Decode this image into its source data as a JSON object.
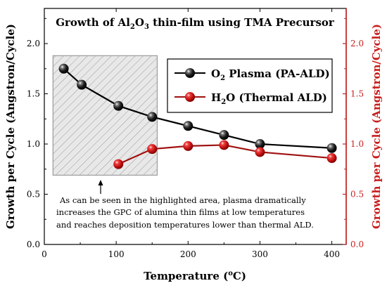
{
  "chart_data": {
    "type": "line",
    "title": {
      "pre": "Growth of Al",
      "sub1": "2",
      "mid": "O",
      "sub2": "3",
      "post": " thin-film using TMA Precursor"
    },
    "xlabel": {
      "pre": "Temperature (",
      "sup": "o",
      "post": "C)"
    },
    "ylabel_left": "Growth per Cycle (Angstron/Cycle)",
    "ylabel_right": "Growth per Cycle (Angstron/Cycle)",
    "xlim": [
      0,
      420
    ],
    "ylim": [
      0,
      2.35
    ],
    "x_ticks": [
      "0",
      "100",
      "200",
      "300",
      "400"
    ],
    "y_ticks": [
      "0.0",
      "0.5",
      "1.0",
      "1.5",
      "2.0"
    ],
    "highlight_range": {
      "x": [
        12,
        157
      ],
      "y": [
        0.69,
        1.88
      ]
    },
    "series": [
      {
        "name": {
          "pre": "O",
          "sub": "2",
          "post": " Plasma (PA-ALD)"
        },
        "color": "#000000",
        "marker": "#111111",
        "x": [
          27,
          52,
          103,
          150,
          200,
          250,
          300,
          400
        ],
        "y": [
          1.75,
          1.59,
          1.38,
          1.27,
          1.18,
          1.09,
          1.0,
          0.96
        ]
      },
      {
        "name": {
          "pre": "H",
          "sub": "2",
          "post": "O (Thermal ALD)"
        },
        "color": "#a01010",
        "marker": "#d41a1a",
        "x": [
          103,
          150,
          200,
          250,
          300,
          400
        ],
        "y": [
          0.8,
          0.95,
          0.98,
          0.99,
          0.92,
          0.86
        ]
      }
    ],
    "annotation": [
      "As can be seen in the highlighted area, plasma dramatically",
      "increases the GPC of alumina thin films at low temperatures",
      "and reaches deposition temperatures lower than thermal ALD."
    ],
    "colors": {
      "left_axis": "#000000",
      "right_axis": "#c81e1e"
    }
  }
}
